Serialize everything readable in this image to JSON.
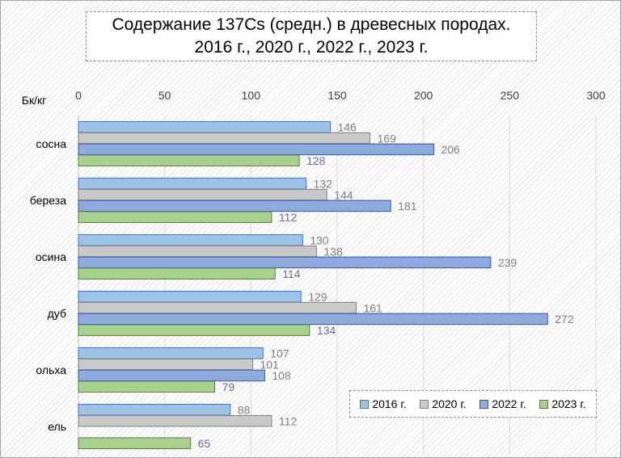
{
  "chart_data": {
    "type": "bar",
    "orientation": "horizontal",
    "title": [
      "Содержание 137Cs (средн.) в древесных породах.",
      "2016 г., 2020 г., 2022 г., 2023 г."
    ],
    "unit_label": "Бк/кг",
    "categories": [
      "сосна",
      "береза",
      "осина",
      "дуб",
      "ольха",
      "ель"
    ],
    "xlim": [
      0,
      300
    ],
    "xticks": [
      "0",
      "50",
      "100",
      "150",
      "200",
      "250",
      "300"
    ],
    "grid": true,
    "legend_position": "bottom-right",
    "series": [
      {
        "name": "2016 г.",
        "color": "#9dc3e6",
        "edge": "#4472c4",
        "label_color": "#7f7f7f",
        "values": [
          146,
          132,
          130,
          129,
          107,
          88
        ]
      },
      {
        "name": "2020 г.",
        "color": "#c9c9c9",
        "edge": "#7f7f7f",
        "label_color": "#7f7f7f",
        "values": [
          169,
          144,
          138,
          161,
          101,
          112
        ]
      },
      {
        "name": "2022 г.",
        "color": "#8faadc",
        "edge": "#2f55a8",
        "label_color": "#7f7f7f",
        "values": [
          206,
          181,
          239,
          272,
          108,
          null
        ]
      },
      {
        "name": "2023 г.",
        "color": "#a9d18e",
        "edge": "#548235",
        "label_color": "#7666a8",
        "values": [
          128,
          112,
          114,
          134,
          79,
          65
        ]
      }
    ]
  }
}
